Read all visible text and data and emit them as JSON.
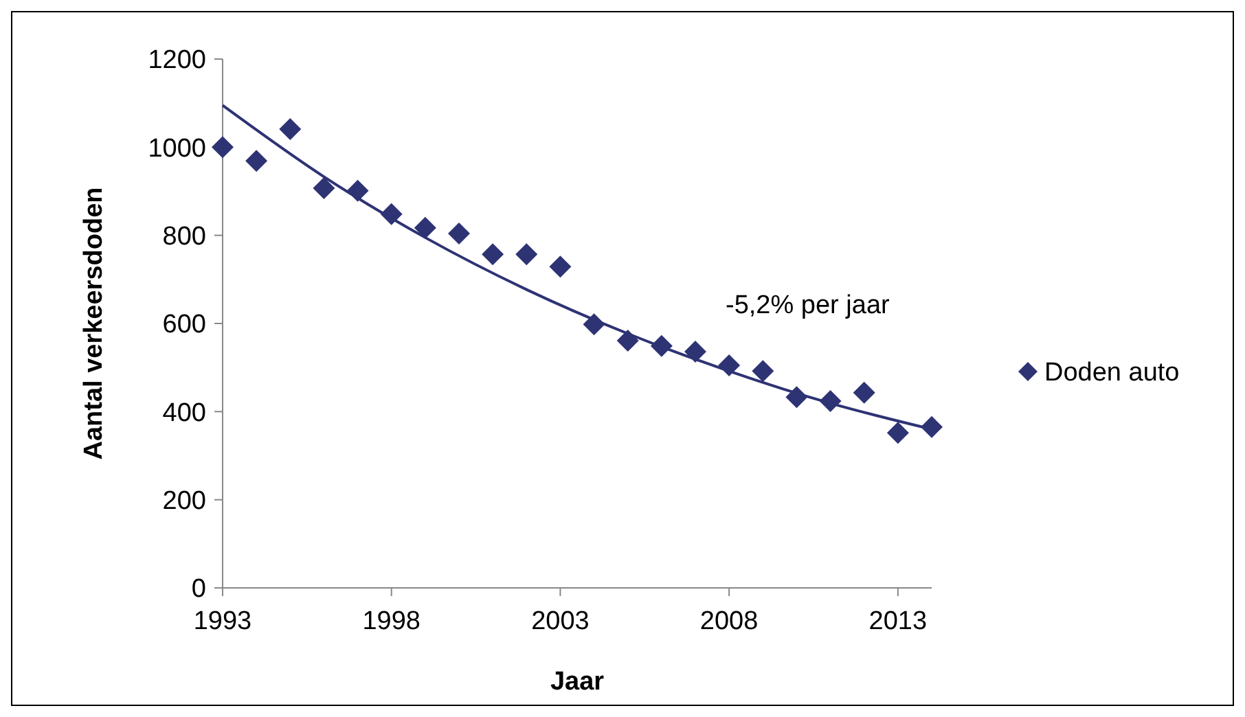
{
  "chart_data": {
    "type": "scatter",
    "xlabel": "Jaar",
    "ylabel": "Aantal verkeersdoden",
    "x": [
      1993,
      1994,
      1995,
      1996,
      1997,
      1998,
      1999,
      2000,
      2001,
      2002,
      2003,
      2004,
      2005,
      2006,
      2007,
      2008,
      2009,
      2010,
      2011,
      2012,
      2013,
      2014
    ],
    "series": [
      {
        "name": "Doden auto",
        "color": "#2e3374",
        "marker": "diamond",
        "values": [
          1000,
          969,
          1041,
          907,
          901,
          848,
          817,
          804,
          757,
          757,
          729,
          598,
          561,
          549,
          536,
          505,
          492,
          433,
          424,
          443,
          352,
          365
        ]
      },
      {
        "type": "line",
        "color": "#2e3374",
        "x": [
          1993,
          1996,
          1999,
          2002,
          2005,
          2008,
          2011,
          2014
        ],
        "values": [
          1095,
          933,
          795,
          677,
          577,
          492,
          419,
          360
        ]
      }
    ],
    "xlim": [
      1993,
      2014
    ],
    "xticks": [
      1993,
      1998,
      2003,
      2008,
      2013
    ],
    "ylim": [
      0,
      1200
    ],
    "yticks": [
      0,
      200,
      400,
      600,
      800,
      1000,
      1200
    ],
    "annotations": [
      "-5,2% per jaar"
    ],
    "legend": "right",
    "grid": false
  }
}
